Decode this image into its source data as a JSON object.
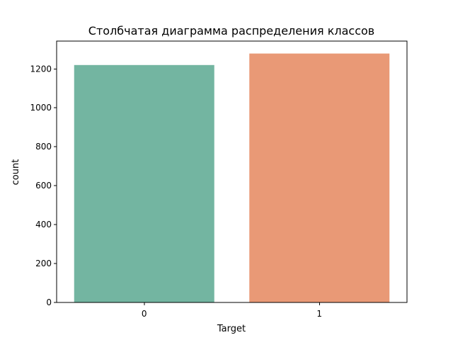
{
  "chart_data": {
    "type": "bar",
    "title": "Столбчатая диаграмма распределения классов",
    "xlabel": "Target",
    "ylabel": "count",
    "categories": [
      "0",
      "1"
    ],
    "values": [
      1220,
      1279
    ],
    "colors": [
      "#73b5a1",
      "#e99976"
    ],
    "ylim": [
      0,
      1343
    ],
    "yticks": [
      0,
      200,
      400,
      600,
      800,
      1000,
      1200
    ],
    "grid": false,
    "legend": "none"
  }
}
